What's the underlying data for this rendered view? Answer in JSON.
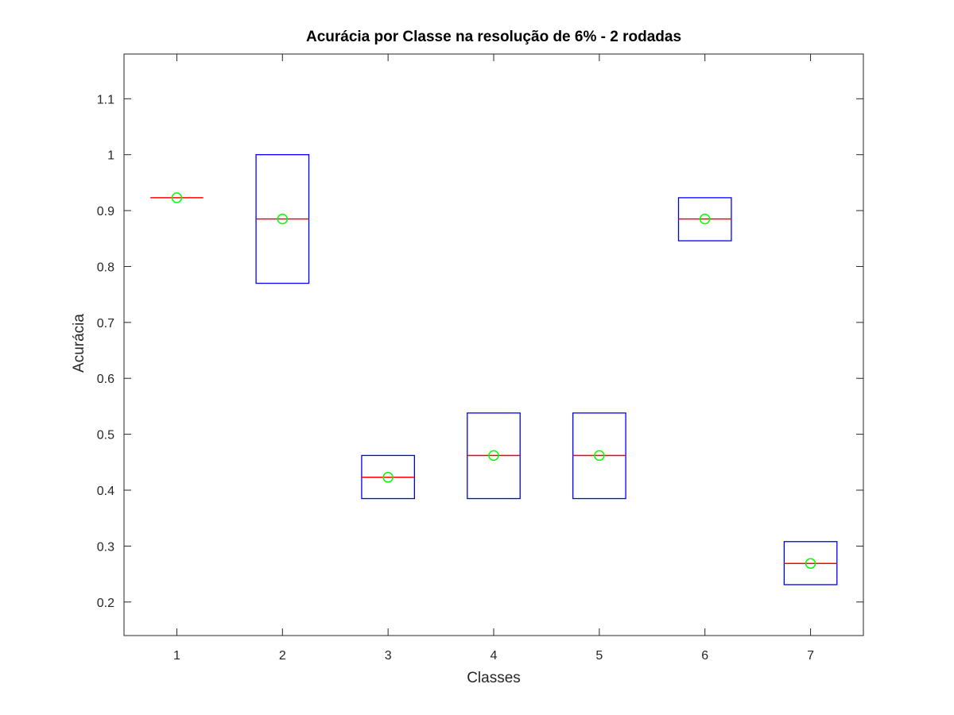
{
  "chart_data": {
    "type": "boxplot",
    "title": "Acurácia por Classe na resolução de 6% - 2 rodadas",
    "xlabel": "Classes",
    "ylabel": "Acurácia",
    "categories": [
      "1",
      "2",
      "3",
      "4",
      "5",
      "6",
      "7"
    ],
    "xlim": [
      0.5,
      7.5
    ],
    "ylim": [
      0.14,
      1.18
    ],
    "yticks": [
      0.2,
      0.3,
      0.4,
      0.5,
      0.6,
      0.7,
      0.8,
      0.9,
      1,
      1.1
    ],
    "ytick_labels": [
      "0.2",
      "0.3",
      "0.4",
      "0.5",
      "0.6",
      "0.7",
      "0.8",
      "0.9",
      "1",
      "1.1"
    ],
    "boxes": [
      {
        "category": "1",
        "q1": 0.923,
        "median": 0.923,
        "q3": 0.923,
        "mean": 0.923
      },
      {
        "category": "2",
        "q1": 0.77,
        "median": 0.885,
        "q3": 1.0,
        "mean": 0.885
      },
      {
        "category": "3",
        "q1": 0.385,
        "median": 0.423,
        "q3": 0.462,
        "mean": 0.423
      },
      {
        "category": "4",
        "q1": 0.385,
        "median": 0.462,
        "q3": 0.538,
        "mean": 0.462
      },
      {
        "category": "5",
        "q1": 0.385,
        "median": 0.462,
        "q3": 0.538,
        "mean": 0.462
      },
      {
        "category": "6",
        "q1": 0.846,
        "median": 0.885,
        "q3": 0.923,
        "mean": 0.885
      },
      {
        "category": "7",
        "q1": 0.231,
        "median": 0.269,
        "q3": 0.308,
        "mean": 0.269
      }
    ],
    "colors": {
      "box": "#0000ff",
      "median": "#ff0000",
      "mean_marker": "#00ff00",
      "axes": "#262626"
    },
    "grid": false,
    "box_mode": "closed"
  }
}
